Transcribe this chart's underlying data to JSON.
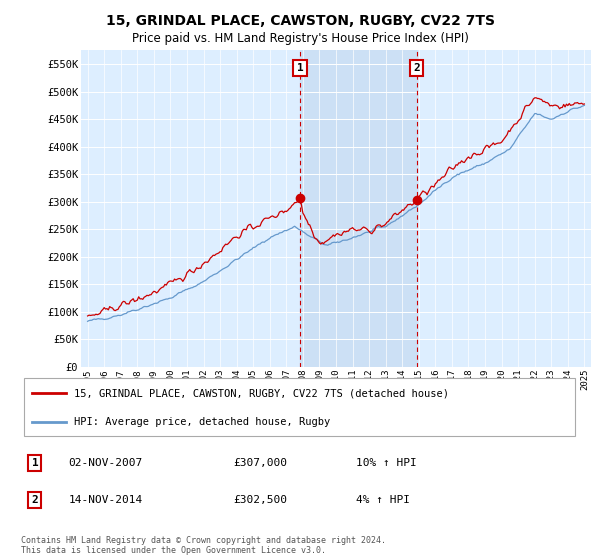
{
  "title": "15, GRINDAL PLACE, CAWSTON, RUGBY, CV22 7TS",
  "subtitle": "Price paid vs. HM Land Registry's House Price Index (HPI)",
  "ylabel_ticks": [
    "£0",
    "£50K",
    "£100K",
    "£150K",
    "£200K",
    "£250K",
    "£300K",
    "£350K",
    "£400K",
    "£450K",
    "£500K",
    "£550K"
  ],
  "ylim": [
    0,
    575000
  ],
  "legend_line1": "15, GRINDAL PLACE, CAWSTON, RUGBY, CV22 7TS (detached house)",
  "legend_line2": "HPI: Average price, detached house, Rugby",
  "marker1_date": "02-NOV-2007",
  "marker1_price": 307000,
  "marker1_label": "10% ↑ HPI",
  "marker2_date": "14-NOV-2014",
  "marker2_price": 302500,
  "marker2_label": "4% ↑ HPI",
  "footer": "Contains HM Land Registry data © Crown copyright and database right 2024.\nThis data is licensed under the Open Government Licence v3.0.",
  "line_color_red": "#cc0000",
  "line_color_blue": "#6699cc",
  "bg_color": "#ddeeff",
  "shade_color": "#cce0f5",
  "annotation_box_color": "#cc0000",
  "marker1_x": 2007.83,
  "marker2_x": 2014.87
}
